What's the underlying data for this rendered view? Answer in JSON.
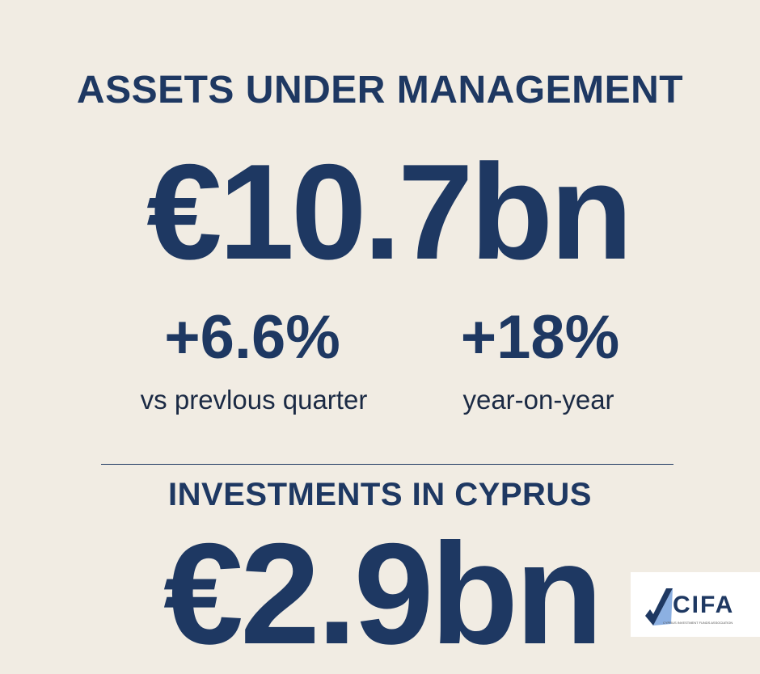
{
  "header": {
    "title": "ASSETS UNDER MANAGEMENT",
    "amount": "€10.7bn"
  },
  "stats": [
    {
      "value": "+6.6%",
      "label": "vs prevlous quarter"
    },
    {
      "value": "+18%",
      "label": "year-on-year"
    }
  ],
  "section": {
    "title": "INVESTMENTS IN CYPRUS",
    "amount": "€2.9bn"
  },
  "logo": {
    "name": "CIFA",
    "tagline": "CYPRUS INVESTMENT FUNDS ASSOCIATION"
  }
}
